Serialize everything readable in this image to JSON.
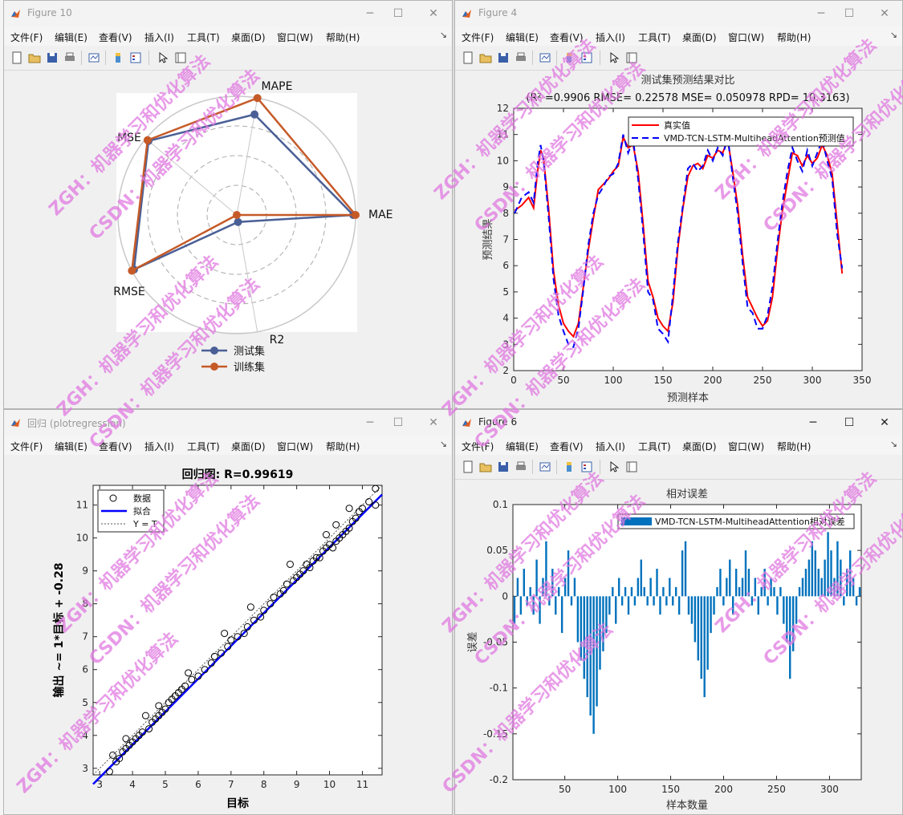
{
  "windows": {
    "radar": {
      "title": "Figure 10",
      "chart_data": {
        "type": "radar",
        "axes": [
          "MAPE",
          "MAE",
          "R2",
          "RMSE",
          "MSE"
        ],
        "series": [
          {
            "name": "测试集",
            "values": [
              0.86,
              0.98,
              0.06,
              0.98,
              0.97
            ],
            "color": "#4a5f96"
          },
          {
            "name": "训练集",
            "values": [
              1.0,
              1.0,
              0.0,
              1.0,
              0.98
            ],
            "color": "#c55a28"
          }
        ],
        "legend_position": "bottom"
      }
    },
    "fig4": {
      "title": "Figure 4",
      "chart_data": {
        "type": "line",
        "title": "测试集预测结果对比",
        "subtitle": "(R² =0.9906 RMSE= 0.22578 MSE= 0.050978 RPD= 10.3163)",
        "xlabel": "预测样本",
        "ylabel": "预测结果",
        "xlim": [
          0,
          350
        ],
        "ylim": [
          2,
          12
        ],
        "xticks": [
          0,
          50,
          100,
          150,
          200,
          250,
          300,
          350
        ],
        "yticks": [
          2,
          3,
          4,
          5,
          6,
          7,
          8,
          9,
          10,
          11,
          12
        ],
        "legend_position": "top-right",
        "series": [
          {
            "name": "真实值",
            "color": "#ff0000",
            "style": "solid",
            "x": [
              1,
              8,
              15,
              20,
              24,
              27,
              30,
              35,
              40,
              45,
              50,
              55,
              60,
              65,
              70,
              75,
              80,
              85,
              90,
              95,
              100,
              105,
              110,
              115,
              120,
              125,
              130,
              135,
              140,
              145,
              150,
              155,
              160,
              165,
              170,
              175,
              180,
              185,
              190,
              195,
              200,
              205,
              210,
              215,
              220,
              225,
              230,
              235,
              240,
              245,
              250,
              255,
              260,
              265,
              270,
              275,
              280,
              285,
              290,
              295,
              300,
              305,
              310,
              315,
              320,
              325,
              330
            ],
            "y": [
              8.1,
              8.3,
              8.6,
              8.2,
              9.6,
              10.4,
              10.1,
              8.2,
              5.8,
              4.5,
              3.8,
              3.5,
              3.3,
              3.8,
              5.2,
              6.6,
              7.8,
              8.9,
              9.1,
              9.3,
              9.6,
              9.8,
              10.9,
              10.5,
              10.6,
              9.6,
              7.6,
              5.4,
              4.8,
              4.0,
              3.7,
              3.5,
              4.6,
              6.7,
              8.2,
              9.4,
              9.8,
              9.9,
              9.7,
              10.2,
              10.1,
              10.4,
              10.3,
              10.8,
              9.6,
              8.3,
              6.4,
              4.8,
              4.4,
              4.0,
              3.7,
              3.9,
              4.8,
              6.6,
              8.1,
              9.2,
              10.3,
              10.2,
              9.8,
              10.2,
              9.9,
              10.1,
              10.6,
              10.2,
              9.5,
              7.6,
              5.7
            ]
          },
          {
            "name": "VMD-TCN-LSTM-MultiheadAttention预测值",
            "color": "#0000ff",
            "style": "dashed",
            "x": [
              1,
              8,
              15,
              20,
              24,
              27,
              30,
              35,
              40,
              45,
              50,
              55,
              60,
              65,
              70,
              75,
              80,
              85,
              90,
              95,
              100,
              105,
              110,
              115,
              120,
              125,
              130,
              135,
              140,
              145,
              150,
              155,
              160,
              165,
              170,
              175,
              180,
              185,
              190,
              195,
              200,
              205,
              210,
              215,
              220,
              225,
              230,
              235,
              240,
              245,
              250,
              255,
              260,
              265,
              270,
              275,
              280,
              285,
              290,
              295,
              300,
              305,
              310,
              315,
              320,
              325,
              330
            ],
            "y": [
              8.0,
              8.6,
              8.8,
              8.4,
              9.9,
              10.6,
              10.0,
              7.9,
              5.5,
              4.1,
              3.5,
              3.0,
              2.9,
              3.6,
              5.1,
              6.8,
              8.0,
              8.7,
              9.0,
              9.4,
              9.5,
              9.9,
              11.0,
              10.3,
              10.8,
              9.3,
              7.3,
              5.0,
              4.7,
              3.6,
              3.4,
              3.1,
              4.9,
              6.9,
              8.3,
              9.7,
              9.9,
              9.6,
              9.8,
              10.4,
              10.0,
              10.5,
              10.2,
              10.9,
              9.4,
              8.0,
              6.1,
              4.4,
              4.2,
              3.6,
              3.6,
              4.1,
              5.2,
              6.9,
              8.4,
              9.6,
              10.5,
              10.0,
              9.6,
              10.4,
              9.8,
              10.3,
              10.8,
              10.0,
              9.3,
              7.2,
              5.9
            ]
          }
        ]
      }
    },
    "regression": {
      "title": "回归 (plotregression)",
      "chart_data": {
        "type": "scatter",
        "title": "回归图: R=0.99619",
        "xlabel": "目标",
        "ylabel": "输出 ~= 1*目标 + -0.28",
        "xlim": [
          2.8,
          11.6
        ],
        "ylim": [
          2.8,
          11.6
        ],
        "xticks": [
          3,
          4,
          5,
          6,
          7,
          8,
          9,
          10,
          11
        ],
        "yticks": [
          3,
          4,
          5,
          6,
          7,
          8,
          9,
          10,
          11
        ],
        "legend": [
          "数据",
          "拟合",
          "Y = T"
        ],
        "legend_position": "top-left",
        "fit": {
          "slope": 1,
          "intercept": -0.28
        },
        "points": [
          [
            3.3,
            2.9
          ],
          [
            3.5,
            3.2
          ],
          [
            3.6,
            3.3
          ],
          [
            3.7,
            3.5
          ],
          [
            3.8,
            3.6
          ],
          [
            3.9,
            3.7
          ],
          [
            4.0,
            3.8
          ],
          [
            3.8,
            3.9
          ],
          [
            4.1,
            3.9
          ],
          [
            4.2,
            4.0
          ],
          [
            4.3,
            4.1
          ],
          [
            4.5,
            4.2
          ],
          [
            4.6,
            4.4
          ],
          [
            4.7,
            4.5
          ],
          [
            4.8,
            4.6
          ],
          [
            4.9,
            4.7
          ],
          [
            5.0,
            4.8
          ],
          [
            4.8,
            4.9
          ],
          [
            5.1,
            5.0
          ],
          [
            5.2,
            5.1
          ],
          [
            5.3,
            5.2
          ],
          [
            5.4,
            5.3
          ],
          [
            5.5,
            5.4
          ],
          [
            5.6,
            5.5
          ],
          [
            5.8,
            5.7
          ],
          [
            6.0,
            5.8
          ],
          [
            6.2,
            6.0
          ],
          [
            6.4,
            6.2
          ],
          [
            6.5,
            6.4
          ],
          [
            6.7,
            6.5
          ],
          [
            6.9,
            6.7
          ],
          [
            7.0,
            6.9
          ],
          [
            7.2,
            7.0
          ],
          [
            7.4,
            7.1
          ],
          [
            7.5,
            7.3
          ],
          [
            7.7,
            7.5
          ],
          [
            7.9,
            7.6
          ],
          [
            8.0,
            7.8
          ],
          [
            8.2,
            8.0
          ],
          [
            8.3,
            8.2
          ],
          [
            8.5,
            8.3
          ],
          [
            8.6,
            8.4
          ],
          [
            8.7,
            8.6
          ],
          [
            8.9,
            8.7
          ],
          [
            9.0,
            8.8
          ],
          [
            9.1,
            8.9
          ],
          [
            9.2,
            9.0
          ],
          [
            9.3,
            9.2
          ],
          [
            9.4,
            9.1
          ],
          [
            9.5,
            9.3
          ],
          [
            9.6,
            9.4
          ],
          [
            9.7,
            9.4
          ],
          [
            9.8,
            9.6
          ],
          [
            9.9,
            9.7
          ],
          [
            10.0,
            9.8
          ],
          [
            10.1,
            9.7
          ],
          [
            10.2,
            9.9
          ],
          [
            10.3,
            10.0
          ],
          [
            10.4,
            10.1
          ],
          [
            10.5,
            10.2
          ],
          [
            10.6,
            10.3
          ],
          [
            10.7,
            10.5
          ],
          [
            10.8,
            10.6
          ],
          [
            10.9,
            10.8
          ],
          [
            11.0,
            10.9
          ],
          [
            11.2,
            11.1
          ],
          [
            11.4,
            11.5
          ],
          [
            11.4,
            11.0
          ],
          [
            3.4,
            3.4
          ],
          [
            4.4,
            4.6
          ],
          [
            5.7,
            5.9
          ],
          [
            6.8,
            7.1
          ],
          [
            7.6,
            7.9
          ],
          [
            8.8,
            9.2
          ],
          [
            9.9,
            10.1
          ],
          [
            10.2,
            10.4
          ],
          [
            10.6,
            10.9
          ]
        ]
      }
    },
    "fig6": {
      "title": "Figure 6",
      "chart_data": {
        "type": "bar",
        "title": "相对误差",
        "xlabel": "样本数量",
        "ylabel": "误差",
        "xlim": [
          1,
          330
        ],
        "ylim": [
          -0.2,
          0.1
        ],
        "xticks": [
          50,
          100,
          150,
          200,
          250,
          300
        ],
        "yticks": [
          -0.2,
          -0.15,
          -0.1,
          -0.05,
          0,
          0.05,
          0.1
        ],
        "legend": [
          "VMD-TCN-LSTM-MultiheadAttention相对误差"
        ],
        "legend_position": "top-right",
        "color": "#0072bd",
        "values": [
          -0.03,
          0.02,
          -0.02,
          0.03,
          -0.01,
          0.01,
          -0.02,
          0.04,
          -0.03,
          0.02,
          0.06,
          -0.01,
          0.03,
          -0.02,
          0.01,
          -0.04,
          0.02,
          0.05,
          -0.01,
          0.02,
          -0.05,
          -0.07,
          -0.09,
          -0.11,
          -0.13,
          -0.15,
          -0.12,
          -0.08,
          -0.06,
          -0.04,
          -0.02,
          0.01,
          -0.03,
          0.02,
          -0.01,
          0.01,
          -0.02,
          0.01,
          -0.01,
          0.02,
          0.04,
          0.01,
          -0.01,
          0.02,
          -0.01,
          0.03,
          -0.02,
          0.01,
          -0.01,
          0.02,
          -0.01,
          0.01,
          -0.02,
          0.05,
          0.06,
          -0.02,
          -0.03,
          -0.05,
          -0.07,
          -0.09,
          -0.11,
          -0.08,
          -0.04,
          -0.02,
          0.01,
          0.03,
          -0.01,
          0.02,
          0.04,
          -0.02,
          0.03,
          0.01,
          0.02,
          0.05,
          0.03,
          -0.01,
          0.02,
          -0.02,
          0.01,
          0.03,
          -0.01,
          0.02,
          0.01,
          -0.02,
          0.01,
          -0.03,
          -0.05,
          -0.09,
          -0.06,
          -0.03,
          0.01,
          0.02,
          0.03,
          0.04,
          0.06,
          0.05,
          0.03,
          0.02,
          0.04,
          0.07,
          0.05,
          0.02,
          0.06,
          0.04,
          -0.01,
          0.03,
          0.05,
          0.02,
          -0.01,
          0.01
        ]
      }
    }
  },
  "menu": [
    "文件(F)",
    "编辑(E)",
    "查看(V)",
    "插入(I)",
    "工具(T)",
    "桌面(D)",
    "窗口(W)",
    "帮助(H)"
  ],
  "window_controls": {
    "minimize": "─",
    "maximize": "☐",
    "close": "✕"
  },
  "overlay_arrow": "↘",
  "watermark": {
    "lines": [
      "ZGH：机器学习和优化算法",
      "CSDN：机器学习和优化算法"
    ],
    "color": "#e07ae0"
  }
}
